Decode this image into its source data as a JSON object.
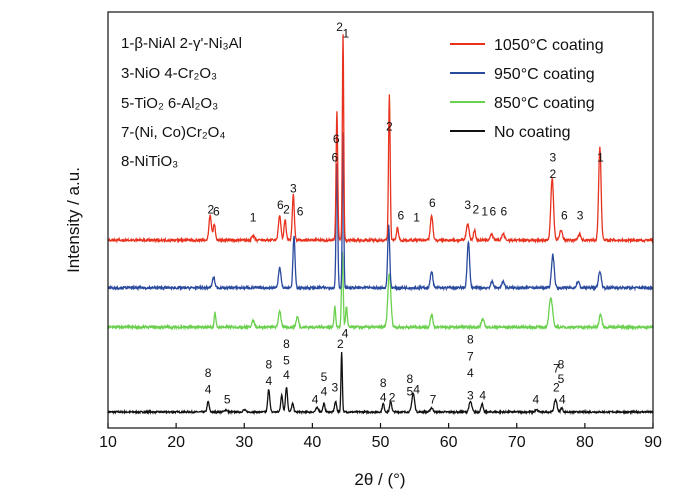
{
  "chart_data": {
    "type": "line",
    "xlabel": "2θ / (°)",
    "ylabel": "Intensity / a.u.",
    "xlim": [
      10,
      90
    ],
    "xticks": [
      "10",
      "20",
      "30",
      "40",
      "50",
      "60",
      "70",
      "80",
      "90"
    ],
    "grid": false,
    "legend_position": "top-right",
    "phase_key": [
      "1-β-NiAl  2-γ'-Ni₃Al",
      "3-NiO    4-Cr₂O₃",
      "5-TiO₂    6-Al₂O₃",
      "7-(Ni, Co)Cr₂O₄",
      "8-NiTiO₃"
    ],
    "series": [
      {
        "name": "1050°C coating",
        "color": "#e8321e",
        "baseline": 0.83,
        "noise": 0.012,
        "peaks": [
          [
            25.0,
            0.12,
            0.18
          ],
          [
            25.6,
            0.08,
            0.15
          ],
          [
            31.3,
            0.02,
            0.2
          ],
          [
            35.2,
            0.12,
            0.18
          ],
          [
            36.0,
            0.1,
            0.15
          ],
          [
            37.2,
            0.22,
            0.15
          ],
          [
            43.6,
            0.62,
            0.12
          ],
          [
            44.5,
            1.0,
            0.1
          ],
          [
            51.3,
            0.7,
            0.12
          ],
          [
            52.5,
            0.06,
            0.15
          ],
          [
            57.5,
            0.12,
            0.18
          ],
          [
            62.8,
            0.08,
            0.2
          ],
          [
            63.8,
            0.05,
            0.15
          ],
          [
            66.3,
            0.03,
            0.2
          ],
          [
            68.0,
            0.03,
            0.2
          ],
          [
            75.2,
            0.3,
            0.2
          ],
          [
            76.5,
            0.05,
            0.2
          ],
          [
            79.2,
            0.03,
            0.2
          ],
          [
            82.2,
            0.45,
            0.18
          ]
        ],
        "labels": [
          {
            "x": 25.1,
            "t": "2",
            "y": 0.96
          },
          {
            "x": 25.9,
            "t": "6",
            "y": 0.95
          },
          {
            "x": 31.3,
            "t": "1",
            "y": 0.92
          },
          {
            "x": 35.3,
            "t": "6",
            "y": 0.98
          },
          {
            "x": 36.2,
            "t": "2",
            "y": 0.96
          },
          {
            "x": 37.2,
            "t": "3",
            "y": 1.06
          },
          {
            "x": 38.2,
            "t": "6",
            "y": 0.95
          },
          {
            "x": 43.5,
            "t": "6",
            "y": 1.3
          },
          {
            "x": 43.3,
            "t": "6",
            "y": 1.21
          },
          {
            "x": 44.0,
            "t": "2",
            "y": 1.84
          },
          {
            "x": 44.9,
            "t": "1",
            "y": 1.81
          },
          {
            "x": 51.3,
            "t": "2",
            "y": 1.36
          },
          {
            "x": 53.0,
            "t": "6",
            "y": 0.93
          },
          {
            "x": 55.3,
            "t": "1",
            "y": 0.92
          },
          {
            "x": 57.6,
            "t": "6",
            "y": 0.99
          },
          {
            "x": 62.8,
            "t": "3",
            "y": 0.98
          },
          {
            "x": 64.0,
            "t": "2",
            "y": 0.96
          },
          {
            "x": 65.3,
            "t": "1",
            "y": 0.95
          },
          {
            "x": 66.5,
            "t": "6",
            "y": 0.95
          },
          {
            "x": 68.1,
            "t": "6",
            "y": 0.95
          },
          {
            "x": 75.3,
            "t": "3",
            "y": 1.21
          },
          {
            "x": 75.3,
            "t": "2",
            "y": 1.13
          },
          {
            "x": 77.0,
            "t": "6",
            "y": 0.93
          },
          {
            "x": 79.3,
            "t": "3",
            "y": 0.93
          },
          {
            "x": 82.3,
            "t": "1",
            "y": 1.21
          }
        ]
      },
      {
        "name": "950°C coating",
        "color": "#2a4a9e",
        "baseline": 0.6,
        "noise": 0.012,
        "peaks": [
          [
            25.5,
            0.05,
            0.18
          ],
          [
            35.2,
            0.1,
            0.18
          ],
          [
            37.3,
            0.25,
            0.15
          ],
          [
            43.6,
            0.6,
            0.12
          ],
          [
            44.5,
            0.75,
            0.1
          ],
          [
            51.2,
            0.3,
            0.15
          ],
          [
            57.5,
            0.08,
            0.18
          ],
          [
            62.9,
            0.22,
            0.18
          ],
          [
            66.4,
            0.03,
            0.2
          ],
          [
            68.0,
            0.03,
            0.2
          ],
          [
            75.3,
            0.16,
            0.2
          ],
          [
            79.0,
            0.03,
            0.2
          ],
          [
            82.2,
            0.08,
            0.2
          ]
        ],
        "labels": []
      },
      {
        "name": "850°C coating",
        "color": "#6ad04e",
        "baseline": 0.41,
        "noise": 0.012,
        "peaks": [
          [
            25.7,
            0.07,
            0.12
          ],
          [
            31.3,
            0.03,
            0.2
          ],
          [
            35.2,
            0.08,
            0.18
          ],
          [
            37.8,
            0.05,
            0.18
          ],
          [
            43.3,
            0.1,
            0.12
          ],
          [
            44.4,
            0.36,
            0.12
          ],
          [
            45.0,
            0.1,
            0.12
          ],
          [
            51.3,
            0.26,
            0.22
          ],
          [
            57.5,
            0.06,
            0.18
          ],
          [
            65.0,
            0.04,
            0.2
          ],
          [
            75.0,
            0.14,
            0.25
          ],
          [
            82.3,
            0.06,
            0.2
          ]
        ],
        "labels": [
          {
            "x": 44.8,
            "t": "4",
            "y": 0.36
          }
        ]
      },
      {
        "name": "No coating",
        "color": "#111111",
        "baseline": 0.0,
        "noise": 0.008,
        "peaks": [
          [
            24.7,
            0.05,
            0.15
          ],
          [
            27.3,
            0.01,
            0.2
          ],
          [
            30.0,
            0.01,
            0.2
          ],
          [
            33.6,
            0.11,
            0.15
          ],
          [
            35.5,
            0.08,
            0.15
          ],
          [
            36.2,
            0.12,
            0.15
          ],
          [
            37.1,
            0.04,
            0.15
          ],
          [
            40.7,
            0.02,
            0.2
          ],
          [
            41.7,
            0.04,
            0.15
          ],
          [
            43.4,
            0.05,
            0.15
          ],
          [
            44.3,
            0.29,
            0.1
          ],
          [
            50.4,
            0.04,
            0.15
          ],
          [
            51.5,
            0.05,
            0.15
          ],
          [
            54.8,
            0.09,
            0.2
          ],
          [
            57.5,
            0.02,
            0.2
          ],
          [
            63.2,
            0.05,
            0.2
          ],
          [
            64.9,
            0.04,
            0.15
          ],
          [
            72.9,
            0.01,
            0.2
          ],
          [
            75.7,
            0.06,
            0.2
          ],
          [
            76.6,
            0.02,
            0.15
          ]
        ],
        "labels": [
          {
            "x": 24.7,
            "t": "8",
            "y": 0.17
          },
          {
            "x": 24.7,
            "t": "4",
            "y": 0.09
          },
          {
            "x": 27.5,
            "t": "5",
            "y": 0.04
          },
          {
            "x": 33.6,
            "t": "8",
            "y": 0.21
          },
          {
            "x": 33.6,
            "t": "4",
            "y": 0.13
          },
          {
            "x": 36.2,
            "t": "8",
            "y": 0.31
          },
          {
            "x": 36.2,
            "t": "5",
            "y": 0.23
          },
          {
            "x": 36.2,
            "t": "4",
            "y": 0.16
          },
          {
            "x": 40.4,
            "t": "4",
            "y": 0.04
          },
          {
            "x": 41.7,
            "t": "5",
            "y": 0.15
          },
          {
            "x": 41.7,
            "t": "4",
            "y": 0.08
          },
          {
            "x": 43.3,
            "t": "3",
            "y": 0.1
          },
          {
            "x": 44.1,
            "t": "2",
            "y": 0.31
          },
          {
            "x": 50.4,
            "t": "8",
            "y": 0.12
          },
          {
            "x": 50.4,
            "t": "4",
            "y": 0.05
          },
          {
            "x": 51.7,
            "t": "2",
            "y": 0.05
          },
          {
            "x": 54.3,
            "t": "8",
            "y": 0.14
          },
          {
            "x": 54.3,
            "t": "5",
            "y": 0.08
          },
          {
            "x": 55.3,
            "t": "4",
            "y": 0.09
          },
          {
            "x": 57.7,
            "t": "7",
            "y": 0.04
          },
          {
            "x": 63.2,
            "t": "8",
            "y": 0.33
          },
          {
            "x": 63.2,
            "t": "7",
            "y": 0.25
          },
          {
            "x": 63.2,
            "t": "4",
            "y": 0.17
          },
          {
            "x": 63.2,
            "t": "3",
            "y": 0.06
          },
          {
            "x": 65.0,
            "t": "4",
            "y": 0.06
          },
          {
            "x": 72.8,
            "t": "4",
            "y": 0.04
          },
          {
            "x": 75.8,
            "t": "7",
            "y": 0.19
          },
          {
            "x": 76.5,
            "t": "8",
            "y": 0.21
          },
          {
            "x": 75.8,
            "t": "2",
            "y": 0.1
          },
          {
            "x": 76.5,
            "t": "5",
            "y": 0.14
          },
          {
            "x": 76.7,
            "t": "4",
            "y": 0.04
          }
        ]
      }
    ]
  }
}
